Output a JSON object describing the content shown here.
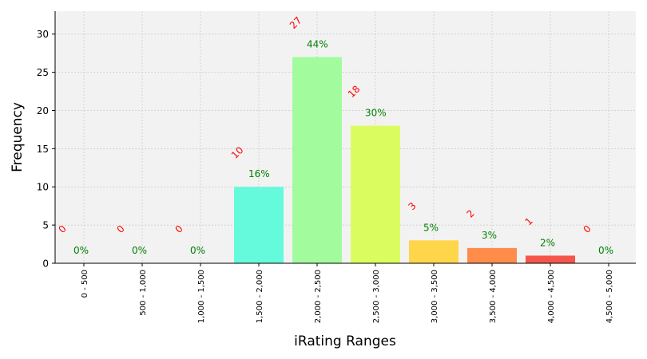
{
  "chart_data": {
    "type": "bar",
    "xlabel": "iRating Ranges",
    "ylabel": "Frequency",
    "ylim": [
      0,
      33
    ],
    "yticks": [
      0,
      5,
      10,
      15,
      20,
      25,
      30
    ],
    "grid": true,
    "categories": [
      "0 - 500",
      "500 - 1,000",
      "1,000 - 1,500",
      "1,500 - 2,000",
      "2,000 - 2,500",
      "2,500 - 3,000",
      "3,000 - 3,500",
      "3,500 - 4,000",
      "4,000 - 4,500",
      "4,500 - 5,000"
    ],
    "values": [
      0,
      0,
      0,
      10,
      27,
      18,
      3,
      2,
      1,
      0
    ],
    "count_labels": [
      "0",
      "0",
      "0",
      "10",
      "27",
      "18",
      "3",
      "2",
      "1",
      "0"
    ],
    "percent_labels": [
      "0%",
      "0%",
      "0%",
      "16%",
      "44%",
      "30%",
      "5%",
      "3%",
      "2%",
      "0%"
    ],
    "bar_colors": [
      "#ff5a4a",
      "#ff8c4a",
      "#ffb84a",
      "#66fadc",
      "#a2fc9e",
      "#dbfc5f",
      "#ffd54a",
      "#ff8c4a",
      "#f5564a",
      "#ff5a4a"
    ],
    "count_label_color": "#ff0000",
    "percent_label_color": "#008000",
    "plot_background": "#f2f2f2"
  }
}
